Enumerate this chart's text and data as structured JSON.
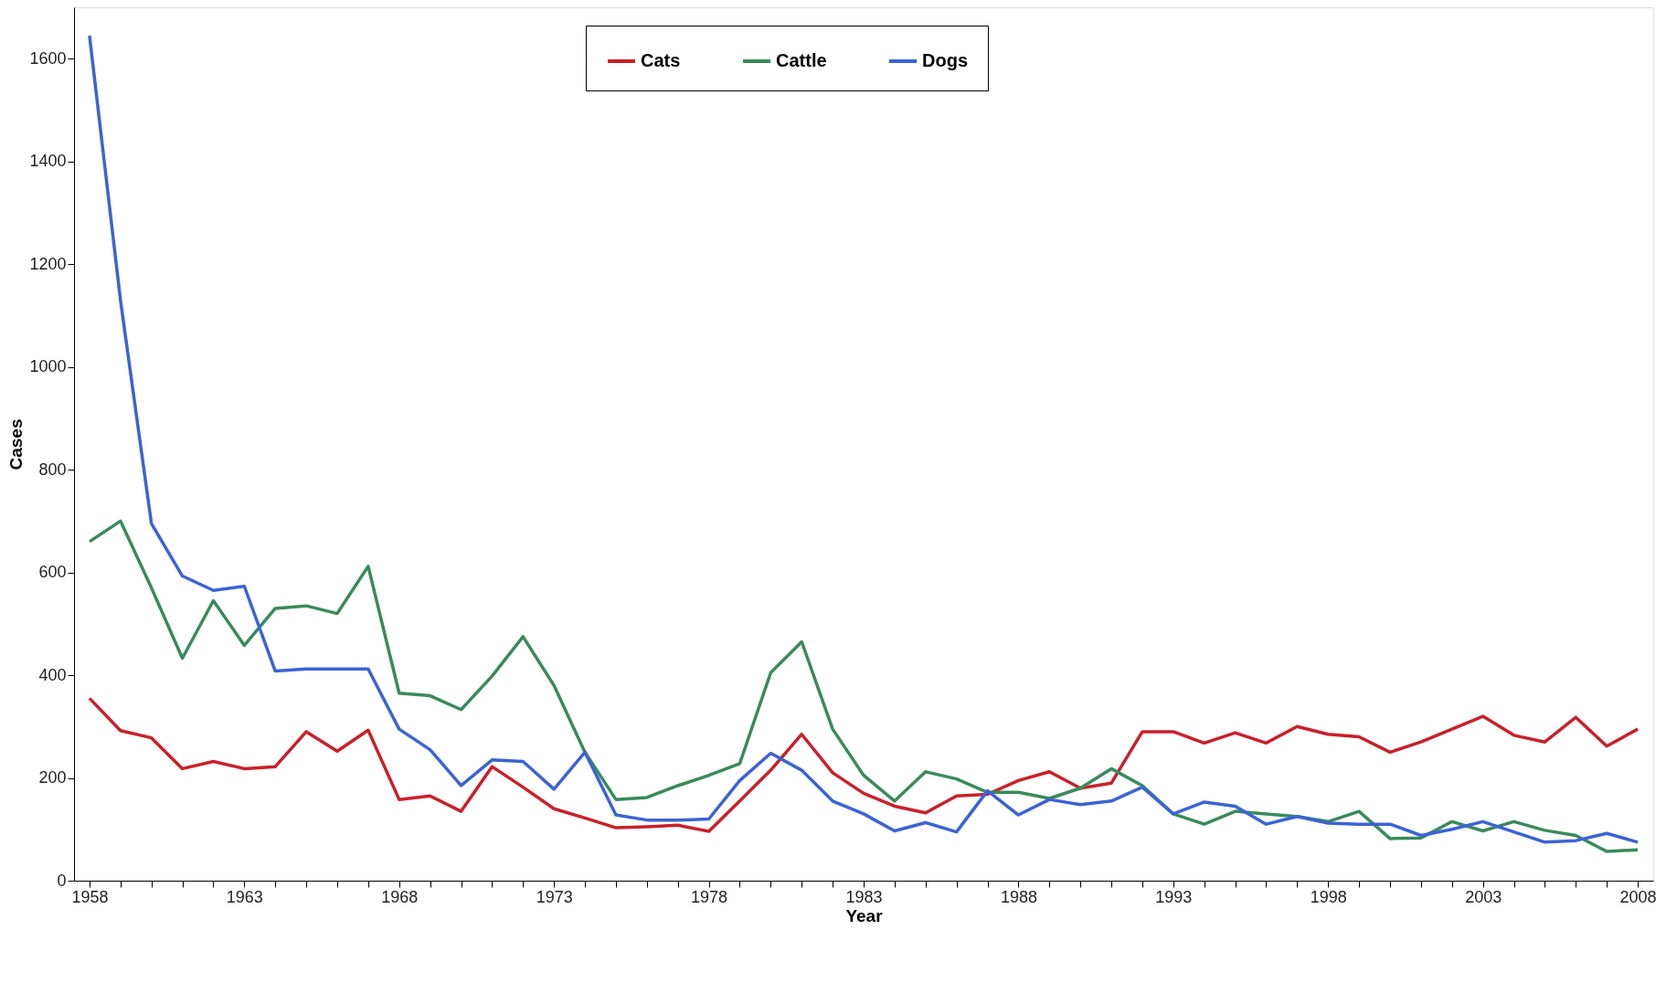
{
  "chart_data": {
    "type": "line",
    "xlabel": "Year",
    "ylabel": "Cases",
    "x": [
      1958,
      1959,
      1960,
      1961,
      1962,
      1963,
      1964,
      1965,
      1966,
      1967,
      1968,
      1969,
      1970,
      1971,
      1972,
      1973,
      1974,
      1975,
      1976,
      1977,
      1978,
      1979,
      1980,
      1981,
      1982,
      1983,
      1984,
      1985,
      1986,
      1987,
      1988,
      1989,
      1990,
      1991,
      1992,
      1993,
      1994,
      1995,
      1996,
      1997,
      1998,
      1999,
      2000,
      2001,
      2002,
      2003,
      2004,
      2005,
      2006,
      2007,
      2008
    ],
    "series": [
      {
        "name": "Cats",
        "color": "#c8202a",
        "values": [
          355,
          292,
          278,
          218,
          232,
          218,
          222,
          290,
          252,
          293,
          158,
          165,
          135,
          222,
          182,
          140,
          122,
          103,
          105,
          108,
          96,
          155,
          215,
          285,
          210,
          170,
          145,
          132,
          165,
          168,
          195,
          212,
          180,
          190,
          290,
          290,
          268,
          288,
          268,
          300,
          285,
          280,
          250,
          270,
          295,
          320,
          283,
          270,
          318,
          262,
          295
        ]
      },
      {
        "name": "Cattle",
        "color": "#3a8a5c",
        "values": [
          660,
          700,
          570,
          433,
          545,
          458,
          530,
          535,
          520,
          612,
          365,
          360,
          333,
          398,
          475,
          380,
          250,
          158,
          162,
          185,
          205,
          228,
          405,
          465,
          295,
          205,
          155,
          212,
          198,
          172,
          172,
          160,
          180,
          218,
          185,
          130,
          110,
          135,
          130,
          125,
          115,
          135,
          82,
          83,
          115,
          97,
          115,
          98,
          88,
          57,
          60
        ]
      },
      {
        "name": "Dogs",
        "color": "#3b63d4",
        "values": [
          1645,
          1130,
          695,
          593,
          565,
          573,
          408,
          412,
          412,
          412,
          295,
          255,
          185,
          235,
          232,
          178,
          250,
          128,
          118,
          118,
          120,
          195,
          248,
          215,
          155,
          130,
          97,
          113,
          95,
          175,
          128,
          158,
          148,
          155,
          182,
          130,
          153,
          145,
          110,
          125,
          112,
          110,
          110,
          88,
          100,
          115,
          95,
          75,
          78,
          92,
          75
        ]
      }
    ],
    "xlim": [
      1957.5,
      2008.5
    ],
    "xticks": [
      1958,
      {
        "value": 1959,
        "label": null
      },
      {
        "value": 1960,
        "label": null
      },
      {
        "value": 1961,
        "label": null
      },
      {
        "value": 1962,
        "label": null
      },
      1963,
      {
        "value": 1964,
        "label": null
      },
      {
        "value": 1965,
        "label": null
      },
      {
        "value": 1966,
        "label": null
      },
      {
        "value": 1967,
        "label": null
      },
      1968,
      {
        "value": 1969,
        "label": null
      },
      {
        "value": 1970,
        "label": null
      },
      {
        "value": 1971,
        "label": null
      },
      {
        "value": 1972,
        "label": null
      },
      1973,
      {
        "value": 1974,
        "label": null
      },
      {
        "value": 1975,
        "label": null
      },
      {
        "value": 1976,
        "label": null
      },
      {
        "value": 1977,
        "label": null
      },
      1978,
      {
        "value": 1979,
        "label": null
      },
      {
        "value": 1980,
        "label": null
      },
      {
        "value": 1981,
        "label": null
      },
      {
        "value": 1982,
        "label": null
      },
      1983,
      {
        "value": 1984,
        "label": null
      },
      {
        "value": 1985,
        "label": null
      },
      {
        "value": 1986,
        "label": null
      },
      {
        "value": 1987,
        "label": null
      },
      1988,
      {
        "value": 1989,
        "label": null
      },
      {
        "value": 1990,
        "label": null
      },
      {
        "value": 1991,
        "label": null
      },
      {
        "value": 1992,
        "label": null
      },
      1993,
      {
        "value": 1994,
        "label": null
      },
      {
        "value": 1995,
        "label": null
      },
      {
        "value": 1996,
        "label": null
      },
      {
        "value": 1997,
        "label": null
      },
      1998,
      {
        "value": 1999,
        "label": null
      },
      {
        "value": 2000,
        "label": null
      },
      {
        "value": 2001,
        "label": null
      },
      {
        "value": 2002,
        "label": null
      },
      2003,
      {
        "value": 2004,
        "label": null
      },
      {
        "value": 2005,
        "label": null
      },
      {
        "value": 2006,
        "label": null
      },
      {
        "value": 2007,
        "label": null
      },
      2008
    ],
    "ylim": [
      0,
      1700
    ],
    "yticks": [
      0,
      200,
      400,
      600,
      800,
      1000,
      1200,
      1400,
      1600
    ],
    "grid": false,
    "legend": "top",
    "marker": "none",
    "line_style": "solid"
  }
}
